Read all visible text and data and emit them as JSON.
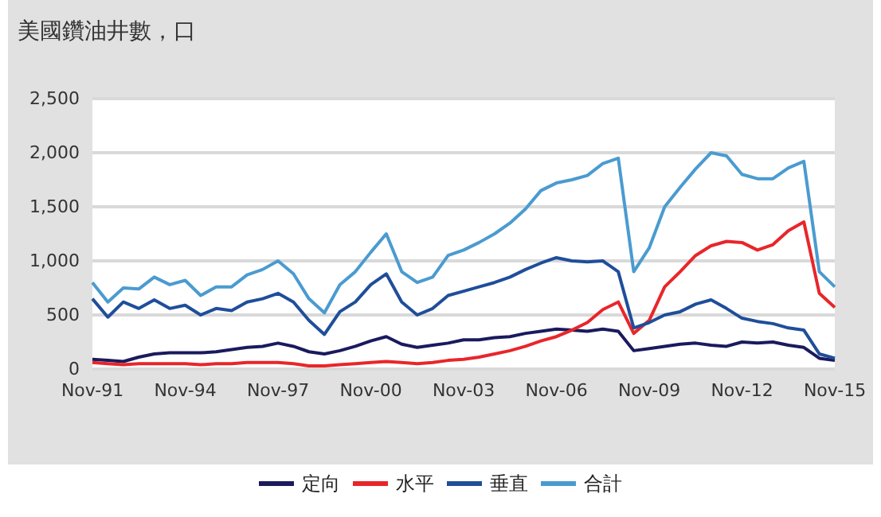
{
  "chart_data": {
    "type": "line",
    "title": "美國鑽油井數，口",
    "categories": [
      "Nov-91",
      null,
      null,
      null,
      null,
      null,
      "Nov-94",
      null,
      null,
      null,
      null,
      null,
      "Nov-97",
      null,
      null,
      null,
      null,
      null,
      "Nov-00",
      null,
      null,
      null,
      null,
      null,
      "Nov-03",
      null,
      null,
      null,
      null,
      null,
      "Nov-06",
      null,
      null,
      null,
      null,
      null,
      "Nov-09",
      null,
      null,
      null,
      null,
      null,
      "Nov-12",
      null,
      null,
      null,
      null,
      null,
      "Nov-15"
    ],
    "series": [
      {
        "name": "定向",
        "color": "#1a1a5e",
        "values": [
          90,
          80,
          70,
          110,
          140,
          150,
          150,
          150,
          160,
          180,
          200,
          210,
          240,
          210,
          160,
          140,
          170,
          210,
          260,
          300,
          230,
          200,
          220,
          240,
          270,
          270,
          290,
          300,
          330,
          350,
          370,
          360,
          350,
          370,
          350,
          170,
          190,
          210,
          230,
          240,
          220,
          210,
          250,
          240,
          250,
          220,
          200,
          100,
          80
        ]
      },
      {
        "name": "水平",
        "color": "#e8262a",
        "values": [
          60,
          50,
          40,
          50,
          50,
          50,
          50,
          40,
          50,
          50,
          60,
          60,
          60,
          50,
          30,
          30,
          40,
          50,
          60,
          70,
          60,
          50,
          60,
          80,
          90,
          110,
          140,
          170,
          210,
          260,
          300,
          360,
          430,
          550,
          620,
          330,
          450,
          760,
          900,
          1050,
          1140,
          1180,
          1170,
          1100,
          1150,
          1280,
          1360,
          700,
          570
        ]
      },
      {
        "name": "垂直",
        "color": "#1f4e9a",
        "values": [
          650,
          480,
          620,
          560,
          640,
          560,
          590,
          500,
          560,
          540,
          620,
          650,
          700,
          620,
          450,
          320,
          530,
          620,
          780,
          880,
          620,
          500,
          560,
          680,
          720,
          760,
          800,
          850,
          920,
          980,
          1030,
          1000,
          990,
          1000,
          900,
          380,
          430,
          500,
          530,
          600,
          640,
          560,
          470,
          440,
          420,
          380,
          360,
          140,
          100
        ]
      },
      {
        "name": "合計",
        "color": "#4a9bd0",
        "values": [
          800,
          620,
          750,
          740,
          850,
          780,
          820,
          680,
          760,
          760,
          870,
          920,
          1000,
          880,
          650,
          520,
          780,
          900,
          1080,
          1250,
          900,
          800,
          850,
          1050,
          1100,
          1170,
          1250,
          1350,
          1480,
          1650,
          1720,
          1750,
          1790,
          1900,
          1950,
          900,
          1120,
          1500,
          1680,
          1850,
          2000,
          1970,
          1800,
          1760,
          1760,
          1860,
          1920,
          900,
          760
        ]
      }
    ],
    "ylim": [
      0,
      2500
    ],
    "yticks": [
      0,
      500,
      {
        "value": 1000,
        "label": "1,000"
      },
      {
        "value": 1500,
        "label": "1,500"
      },
      {
        "value": 2000,
        "label": "2,000"
      },
      {
        "value": 2500,
        "label": "2,500"
      }
    ],
    "grid": "y",
    "legend": "bottom",
    "marker": "none",
    "line_style": "solid"
  }
}
